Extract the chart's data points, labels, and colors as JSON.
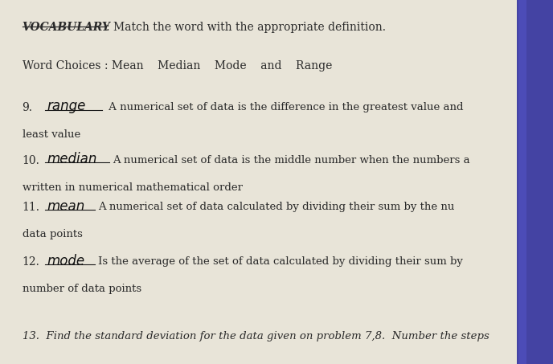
{
  "bg_color": "#ccc8c0",
  "paper_color": "#e8e4d8",
  "title_bold": "VOCABULARY",
  "title_rest": ": Match the word with the appropriate definition.",
  "word_choices_label": "Word Choices : Mean    Median    Mode    and    Range",
  "items": [
    {
      "number": "9.",
      "handwritten": "range",
      "printed": " A numerical set of data is the difference in the greatest value and",
      "continuation": "least value"
    },
    {
      "number": "10.",
      "handwritten": "median",
      "printed": "A numerical set of data is the middle number when the numbers a",
      "continuation": "written in numerical mathematical order"
    },
    {
      "number": "11.",
      "handwritten": "mean",
      "printed": "A numerical set of data calculated by dividing their sum by the nu",
      "continuation": "data points"
    },
    {
      "number": "12.",
      "handwritten": "mode",
      "printed": "Is the average of the set of data calculated by dividing their sum by",
      "continuation": "number of data points"
    }
  ],
  "item13": "13.  Find the standard deviation for the data given on problem 7,8.  Number the steps",
  "pen_color": "#3535a0",
  "pen_highlight": "#5555cc",
  "text_color": "#2a2a2a",
  "underline_color": "#1a1a1a",
  "handwritten_color": "#111111"
}
